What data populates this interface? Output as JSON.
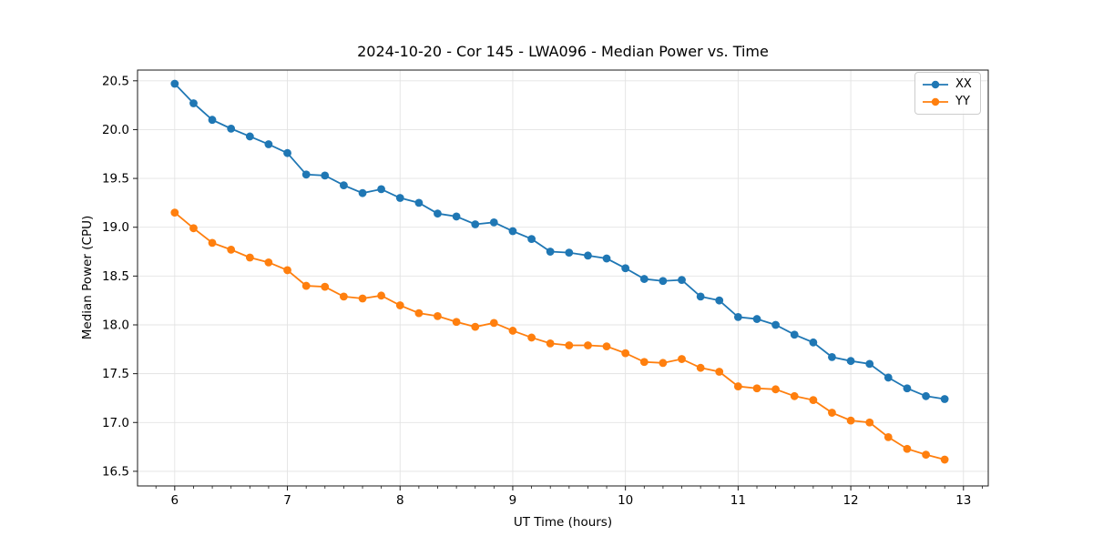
{
  "chart_data": {
    "type": "line",
    "title": "2024-10-20 - Cor 145 - LWA096 - Median Power vs. Time",
    "xlabel": "UT Time (hours)",
    "ylabel": "Median Power (CPU)",
    "xlim": [
      5.67,
      13.22
    ],
    "ylim": [
      16.35,
      20.61
    ],
    "x_ticks": [
      6,
      7,
      8,
      9,
      10,
      11,
      12,
      13
    ],
    "y_ticks": [
      16.5,
      17.0,
      17.5,
      18.0,
      18.5,
      19.0,
      19.5,
      20.0,
      20.5
    ],
    "x_minor_tick_step": 0.16667,
    "grid": true,
    "grid_color": "#e3e3e3",
    "legend_position": "upper right",
    "marker": "circle",
    "x": [
      6.0,
      6.167,
      6.333,
      6.5,
      6.667,
      6.833,
      7.0,
      7.167,
      7.333,
      7.5,
      7.667,
      7.833,
      8.0,
      8.167,
      8.333,
      8.5,
      8.667,
      8.833,
      9.0,
      9.167,
      9.333,
      9.5,
      9.667,
      9.833,
      10.0,
      10.167,
      10.333,
      10.5,
      10.667,
      10.833,
      11.0,
      11.167,
      11.333,
      11.5,
      11.667,
      11.833,
      12.0,
      12.167,
      12.333,
      12.5,
      12.667,
      12.833
    ],
    "series": [
      {
        "name": "XX",
        "color": "#1f77b4",
        "values": [
          20.47,
          20.27,
          20.1,
          20.01,
          19.93,
          19.85,
          19.76,
          19.54,
          19.53,
          19.43,
          19.35,
          19.39,
          19.3,
          19.25,
          19.14,
          19.11,
          19.03,
          19.05,
          18.96,
          18.88,
          18.75,
          18.74,
          18.71,
          18.68,
          18.58,
          18.47,
          18.45,
          18.46,
          18.29,
          18.25,
          18.08,
          18.06,
          18.0,
          17.9,
          17.82,
          17.67,
          17.63,
          17.6,
          17.46,
          17.35,
          17.27,
          17.24
        ]
      },
      {
        "name": "YY",
        "color": "#ff7f0e",
        "values": [
          19.15,
          18.99,
          18.84,
          18.77,
          18.69,
          18.64,
          18.56,
          18.4,
          18.39,
          18.29,
          18.27,
          18.3,
          18.2,
          18.12,
          18.09,
          18.03,
          17.98,
          18.02,
          17.94,
          17.87,
          17.81,
          17.79,
          17.79,
          17.78,
          17.71,
          17.62,
          17.61,
          17.65,
          17.56,
          17.52,
          17.37,
          17.35,
          17.34,
          17.27,
          17.23,
          17.1,
          17.02,
          17.0,
          16.85,
          16.73,
          16.67,
          16.62
        ]
      }
    ]
  }
}
